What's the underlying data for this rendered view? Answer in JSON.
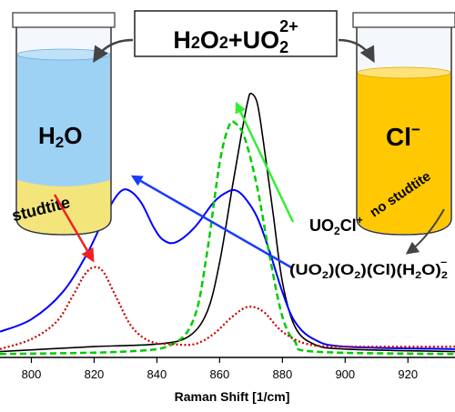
{
  "chart_data": {
    "type": "line",
    "xlabel": "Raman Shift [1/cm]",
    "ylabel": "",
    "xlim": [
      790,
      935
    ],
    "ylim": [
      0,
      1.18
    ],
    "x_ticks": [
      "800",
      "820",
      "840",
      "860",
      "880",
      "900",
      "920"
    ],
    "grid": false,
    "legend": "none",
    "series": [
      {
        "color": "#000000",
        "style": "solid",
        "points": [
          [
            790,
            0.02
          ],
          [
            820,
            0.04
          ],
          [
            840,
            0.05
          ],
          [
            850,
            0.08
          ],
          [
            856,
            0.18
          ],
          [
            860,
            0.38
          ],
          [
            864,
            0.68
          ],
          [
            867,
            0.9
          ],
          [
            869,
            1.03
          ],
          [
            870,
            1.06
          ],
          [
            872,
            1.02
          ],
          [
            874,
            0.86
          ],
          [
            877,
            0.58
          ],
          [
            880,
            0.3
          ],
          [
            884,
            0.12
          ],
          [
            890,
            0.05
          ],
          [
            900,
            0.03
          ],
          [
            935,
            0.02
          ]
        ]
      },
      {
        "color": "#0000ff",
        "style": "solid",
        "points": [
          [
            790,
            0.1
          ],
          [
            800,
            0.15
          ],
          [
            810,
            0.26
          ],
          [
            818,
            0.42
          ],
          [
            824,
            0.58
          ],
          [
            828,
            0.66
          ],
          [
            831,
            0.67
          ],
          [
            835,
            0.62
          ],
          [
            839,
            0.52
          ],
          [
            842,
            0.47
          ],
          [
            846,
            0.46
          ],
          [
            852,
            0.52
          ],
          [
            858,
            0.62
          ],
          [
            862,
            0.66
          ],
          [
            865,
            0.67
          ],
          [
            868,
            0.64
          ],
          [
            872,
            0.56
          ],
          [
            876,
            0.42
          ],
          [
            880,
            0.26
          ],
          [
            884,
            0.14
          ],
          [
            890,
            0.07
          ],
          [
            900,
            0.04
          ],
          [
            935,
            0.03
          ]
        ]
      },
      {
        "color": "#00cc00",
        "style": "dashed",
        "points": [
          [
            790,
            0.01
          ],
          [
            830,
            0.02
          ],
          [
            845,
            0.05
          ],
          [
            852,
            0.16
          ],
          [
            856,
            0.42
          ],
          [
            860,
            0.78
          ],
          [
            863,
            0.93
          ],
          [
            865,
            0.94
          ],
          [
            868,
            0.88
          ],
          [
            872,
            0.68
          ],
          [
            876,
            0.4
          ],
          [
            880,
            0.16
          ],
          [
            884,
            0.06
          ],
          [
            890,
            0.02
          ],
          [
            935,
            0.01
          ]
        ]
      },
      {
        "color": "#cc0000",
        "style": "dotted",
        "points": [
          [
            790,
            0.03
          ],
          [
            800,
            0.07
          ],
          [
            808,
            0.14
          ],
          [
            813,
            0.24
          ],
          [
            817,
            0.33
          ],
          [
            820,
            0.36
          ],
          [
            823,
            0.34
          ],
          [
            827,
            0.24
          ],
          [
            832,
            0.12
          ],
          [
            838,
            0.06
          ],
          [
            845,
            0.05
          ],
          [
            852,
            0.05
          ],
          [
            858,
            0.09
          ],
          [
            864,
            0.16
          ],
          [
            869,
            0.2
          ],
          [
            874,
            0.18
          ],
          [
            880,
            0.1
          ],
          [
            888,
            0.05
          ],
          [
            900,
            0.04
          ],
          [
            935,
            0.04
          ]
        ]
      }
    ],
    "annotations": {
      "center_formula": {
        "left": "H",
        "left_sub": "2",
        "mid": "O",
        "mid_sub": "2",
        "plus": "+UO",
        "right_sub": "2",
        "right_sup": "2+"
      },
      "left_vial": {
        "main": "H",
        "main_sub": "2",
        "tail": "O",
        "band_label": "studtite",
        "liquid_color": "#9ed2f5",
        "band_color": "#f3e57a"
      },
      "right_vial": {
        "symbol": "Cl",
        "symbol_sup": "−",
        "band_label": "no studtite",
        "liquid_color": "#ffc800"
      },
      "species_1": {
        "p1": "UO",
        "s1": "2",
        "p2": "Cl",
        "sup": "+"
      },
      "species_2": {
        "p1": "(UO",
        "s1": "2",
        "p2": ")(O",
        "s2": "2",
        "p3": ")(Cl)(H",
        "s3": "2",
        "p4": "O)",
        "s4": "2",
        "sup": "−"
      }
    }
  }
}
